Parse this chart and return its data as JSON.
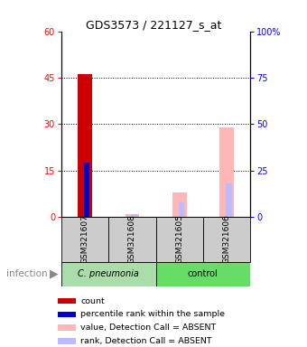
{
  "title": "GDS3573 / 221127_s_at",
  "samples": [
    "GSM321607",
    "GSM321608",
    "GSM321605",
    "GSM321606"
  ],
  "left_yticks": [
    0,
    15,
    30,
    45,
    60
  ],
  "right_yticks": [
    0,
    25,
    50,
    75,
    100
  ],
  "ylim_left": [
    0,
    60
  ],
  "ylim_right": [
    0,
    100
  ],
  "count_values": [
    46,
    0,
    0,
    0
  ],
  "count_color": "#cc0000",
  "percentile_rank_values": [
    29,
    0,
    0,
    0
  ],
  "percentile_rank_color": "#0000cd",
  "absent_value_values": [
    0,
    1,
    8,
    29
  ],
  "absent_value_color": "#ffb6b6",
  "absent_rank_values": [
    0,
    1.5,
    8,
    18
  ],
  "absent_rank_color": "#bbbbff",
  "sample_box_color": "#cccccc",
  "cpneum_color": "#aaddaa",
  "control_color": "#66dd66",
  "infection_label": "infection",
  "legend_items": [
    {
      "color": "#cc0000",
      "label": "count"
    },
    {
      "color": "#0000cd",
      "label": "percentile rank within the sample"
    },
    {
      "color": "#ffb6b6",
      "label": "value, Detection Call = ABSENT"
    },
    {
      "color": "#bbbbff",
      "label": "rank, Detection Call = ABSENT"
    }
  ]
}
